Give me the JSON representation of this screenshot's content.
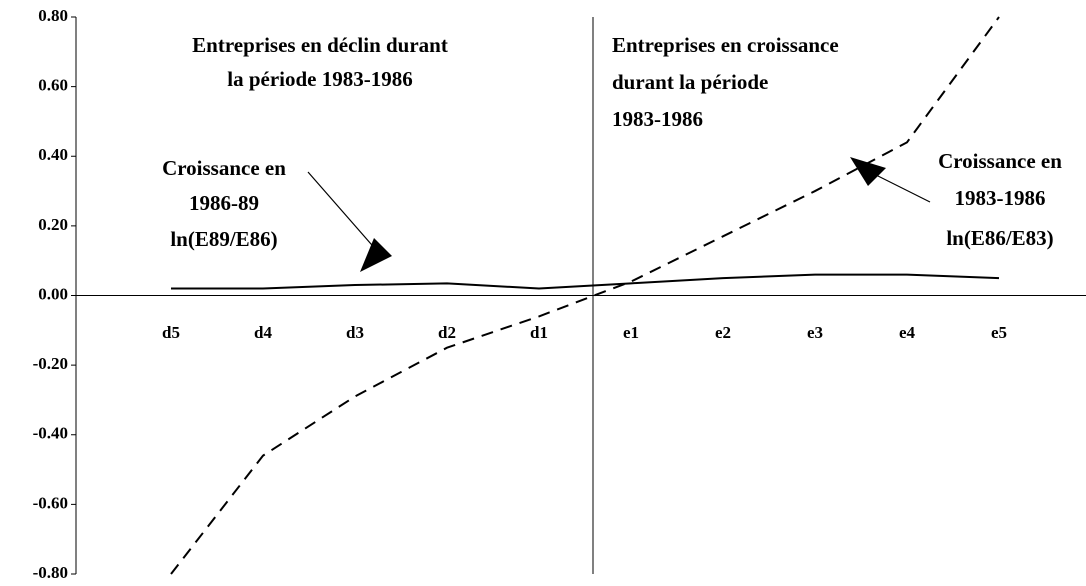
{
  "chart_data": {
    "type": "line",
    "categories": [
      "d5",
      "d4",
      "d3",
      "d2",
      "d1",
      "e1",
      "e2",
      "e3",
      "e4",
      "e5"
    ],
    "series": [
      {
        "label_lines": [
          "Croissance en",
          "1986-89",
          "ln(E89/E86)"
        ],
        "color": "#000000",
        "dash": false,
        "values": [
          0.02,
          0.02,
          0.03,
          0.035,
          0.02,
          0.035,
          0.05,
          0.06,
          0.06,
          0.05
        ]
      },
      {
        "label_lines": [
          "Croissance en",
          "1983-1986",
          "ln(E86/E83)"
        ],
        "color": "#000000",
        "dash": true,
        "values": [
          -0.8,
          -0.46,
          -0.29,
          -0.15,
          -0.06,
          0.04,
          0.17,
          0.3,
          0.44,
          0.8
        ]
      }
    ],
    "annotations": [
      {
        "lines": [
          "Entreprises en déclin durant",
          "la période 1983-1986"
        ]
      },
      {
        "lines": [
          "Entreprises en croissance",
          "durant la période",
          "1983-1986"
        ]
      }
    ],
    "ylim": [
      -0.8,
      0.8
    ],
    "yticks": [
      {
        "value": -0.8,
        "label": "-0.80"
      },
      {
        "value": -0.6,
        "label": "-0.60"
      },
      {
        "value": -0.4,
        "label": "-0.40"
      },
      {
        "value": -0.2,
        "label": "-0.20"
      },
      {
        "value": 0,
        "label": "0.00"
      },
      {
        "value": 0.2,
        "label": "0.20"
      },
      {
        "value": 0.4,
        "label": "0.40"
      },
      {
        "value": 0.6,
        "label": "0.60"
      },
      {
        "value": 0.8,
        "label": "0.80"
      }
    ]
  }
}
